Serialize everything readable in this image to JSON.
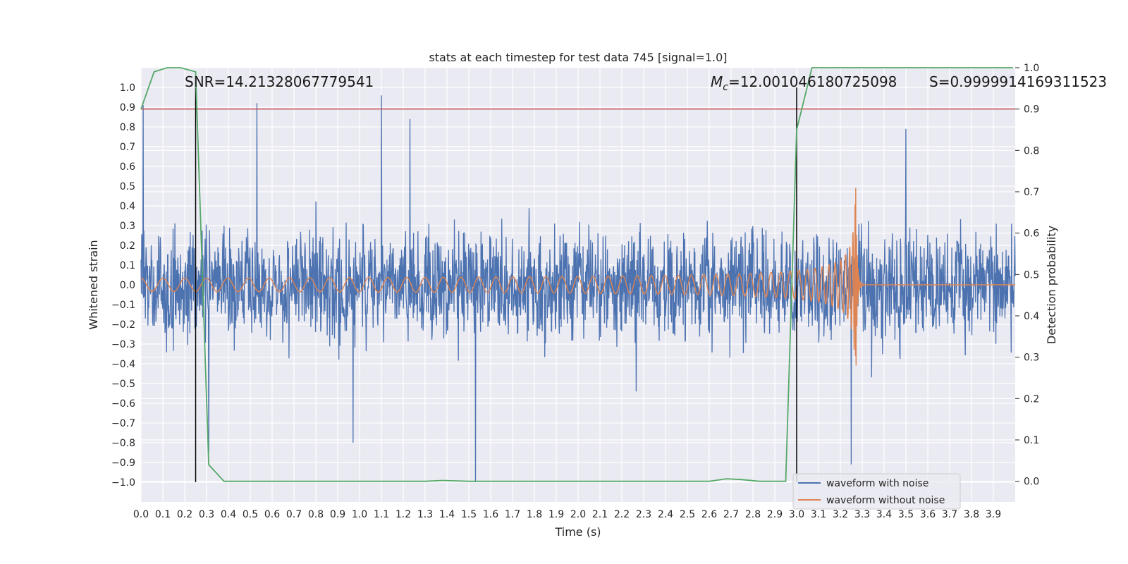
{
  "chart_data": {
    "type": "line",
    "title": "stats at each timestep for test data 745 [signal=1.0]",
    "xlabel": "Time (s)",
    "ylabel": "Whitened strain",
    "y2label": "Detection probability",
    "xlim": [
      0.0,
      4.0
    ],
    "ylim": [
      -1.1,
      1.1
    ],
    "y2lim": [
      -0.05,
      1.0
    ],
    "xticks": [
      "0.0",
      "0.1",
      "0.2",
      "0.3",
      "0.4",
      "0.5",
      "0.6",
      "0.7",
      "0.8",
      "0.9",
      "1.0",
      "1.1",
      "1.2",
      "1.3",
      "1.4",
      "1.5",
      "1.6",
      "1.7",
      "1.8",
      "1.9",
      "2.0",
      "2.1",
      "2.2",
      "2.3",
      "2.4",
      "2.5",
      "2.6",
      "2.7",
      "2.8",
      "2.9",
      "3.0",
      "3.1",
      "3.2",
      "3.3",
      "3.4",
      "3.5",
      "3.6",
      "3.7",
      "3.8",
      "3.9"
    ],
    "yticks": [
      "1.0",
      "0.9",
      "0.8",
      "0.7",
      "0.6",
      "0.5",
      "0.4",
      "0.3",
      "0.2",
      "0.1",
      "0.0",
      "−0.1",
      "−0.2",
      "−0.3",
      "−0.4",
      "−0.5",
      "−0.6",
      "−0.7",
      "−0.8",
      "−0.9",
      "−1.0"
    ],
    "y2ticks": [
      "1.0",
      "0.9",
      "0.8",
      "0.7",
      "0.6",
      "0.5",
      "0.4",
      "0.3",
      "0.2",
      "0.1",
      "0.0"
    ],
    "annotations": {
      "snr": "SNR=14.21328067779541",
      "mc_symbol": "M",
      "mc_sub": "c",
      "mc_value": "=12.001046180725098",
      "s": "S=0.9999914169311523"
    },
    "legend": {
      "placement": "lower-right",
      "entries": [
        {
          "name": "waveform with noise",
          "color": "#4c72b0"
        },
        {
          "name": "waveform without noise",
          "color": "#dd8452"
        }
      ]
    },
    "series": [
      {
        "name": "waveform with noise",
        "color": "#4c72b0",
        "kind": "noise",
        "amplitude_typical": 0.35,
        "x_range": [
          0.0,
          4.0
        ],
        "spikes": [
          {
            "x": 0.01,
            "y": 0.91
          },
          {
            "x": 0.53,
            "y": 0.92
          },
          {
            "x": 1.1,
            "y": 0.96
          },
          {
            "x": 1.23,
            "y": 0.84
          },
          {
            "x": 1.53,
            "y": -1.0
          },
          {
            "x": 3.25,
            "y": -0.91
          },
          {
            "x": 3.5,
            "y": 0.79
          },
          {
            "x": 0.31,
            "y": -0.85
          },
          {
            "x": 0.97,
            "y": -0.8
          }
        ]
      },
      {
        "name": "waveform without noise",
        "color": "#dd8452",
        "kind": "chirp",
        "start_amplitude": 0.02,
        "peak_amplitude": 0.56,
        "merger_time": 3.27,
        "x_range": [
          0.0,
          4.0
        ]
      },
      {
        "name": "detection probability",
        "color": "#55a868",
        "axis": "right",
        "x": [
          0.0,
          0.06,
          0.12,
          0.18,
          0.25,
          0.31,
          0.38,
          1.0,
          1.3,
          1.38,
          1.5,
          2.0,
          2.6,
          2.68,
          2.75,
          2.83,
          2.95,
          3.0,
          3.07,
          3.5,
          3.99
        ],
        "values": [
          0.9,
          0.99,
          1.0,
          1.0,
          0.99,
          0.04,
          0.0,
          0.0,
          0.0,
          0.002,
          0.0,
          0.0,
          0.0,
          0.006,
          0.004,
          0.0,
          0.0,
          0.85,
          1.0,
          1.0,
          1.0
        ]
      }
    ],
    "threshold": {
      "axis": "right",
      "value": 0.9,
      "color": "#c44e52"
    },
    "vlines": [
      0.25,
      3.0
    ],
    "vline_color": "#000000"
  }
}
